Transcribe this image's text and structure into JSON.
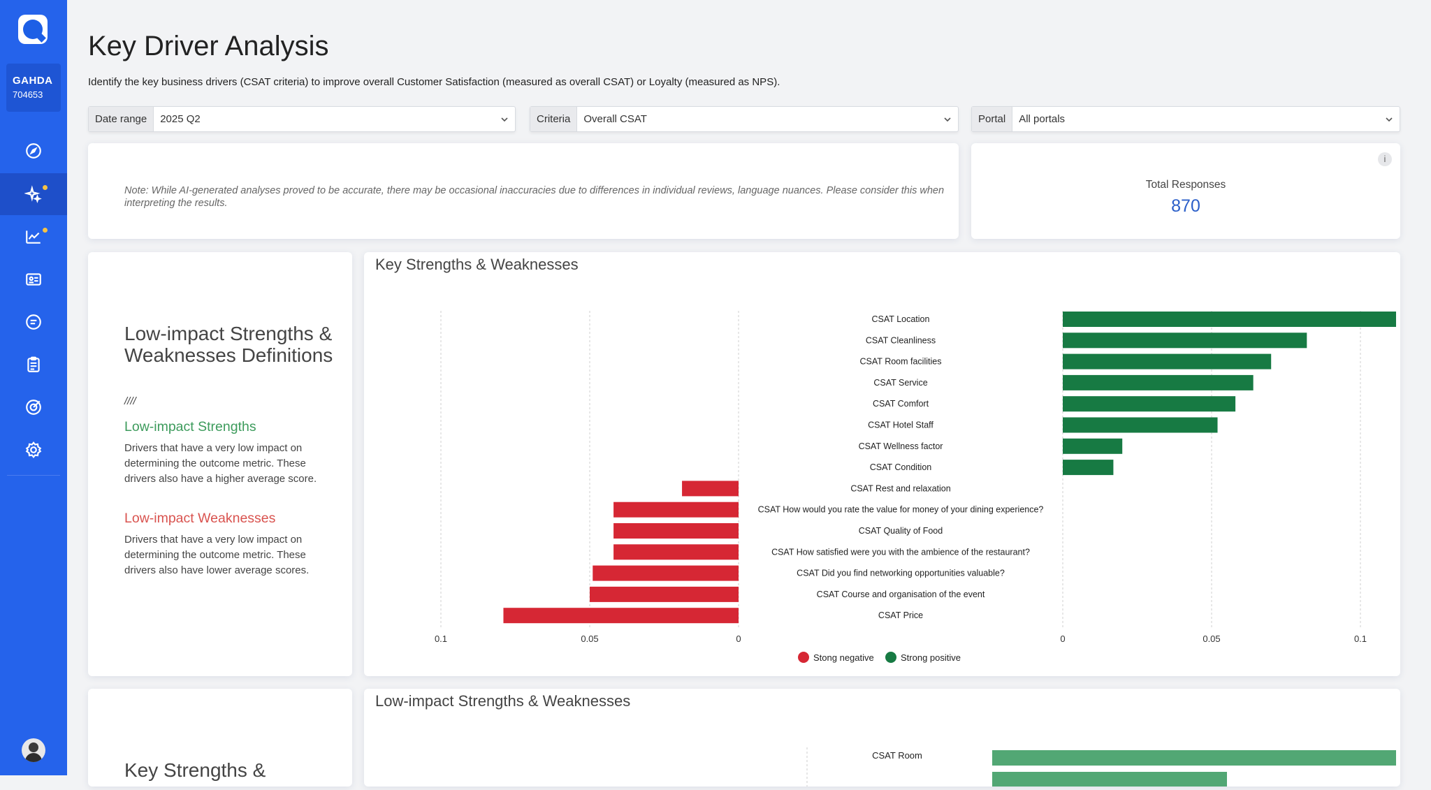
{
  "account": {
    "name": "GAHDA",
    "id": "704653"
  },
  "nav": {
    "items": [
      {
        "name": "explore",
        "icon": "compass-icon"
      },
      {
        "name": "ai-insights",
        "icon": "sparkles-icon",
        "active": true,
        "badge": true
      },
      {
        "name": "analytics",
        "icon": "chart-line-icon",
        "badge": true
      },
      {
        "name": "profiles",
        "icon": "id-card-icon"
      },
      {
        "name": "messages",
        "icon": "chat-bubble-icon"
      },
      {
        "name": "surveys",
        "icon": "clipboard-icon"
      },
      {
        "name": "goals",
        "icon": "target-icon"
      },
      {
        "name": "settings",
        "icon": "gear-icon"
      }
    ]
  },
  "page": {
    "title": "Key Driver Analysis",
    "subtitle": "Identify the key business drivers (CSAT criteria) to improve overall Customer Satisfaction (measured as overall CSAT) or Loyalty (measured as NPS)."
  },
  "filters": {
    "date_range": {
      "label": "Date range",
      "value": "2025 Q2"
    },
    "criteria": {
      "label": "Criteria",
      "value": "Overall CSAT"
    },
    "portal": {
      "label": "Portal",
      "value": "All portals"
    }
  },
  "note": "Note: While AI-generated analyses proved to be accurate, there may be occasional inaccuracies due to differences in individual reviews, language nuances. Please consider this when interpreting the results.",
  "total": {
    "label": "Total Responses",
    "value": "870",
    "info": "i"
  },
  "definitions": {
    "title": "Low-impact Strengths & Weaknesses Definitions",
    "separator": "////",
    "strengths_title": "Low-impact Strengths",
    "strengths_desc": "Drivers that have a very low impact on determining the outcome metric. These drivers also have a higher average score.",
    "weaknesses_title": "Low-impact Weaknesses",
    "weaknesses_desc": "Drivers that have a very low impact on determining the outcome metric. These drivers also have lower average scores.",
    "strength_color": "#3d9b5c",
    "weakness_color": "#d9534f"
  },
  "chart_data": {
    "type": "bar",
    "title": "Key Strengths & Weaknesses",
    "orientation": "diverging-horizontal",
    "categories": [
      "CSAT Location",
      "CSAT Cleanliness",
      "CSAT Room facilities",
      "CSAT Service",
      "CSAT Comfort",
      "CSAT Hotel Staff",
      "CSAT Wellness factor",
      "CSAT Condition",
      "CSAT Rest and relaxation",
      "CSAT How would you rate the value for money of your dining experience?",
      "CSAT Quality of Food",
      "CSAT How satisfied were you with the ambience of the restaurant?",
      "CSAT Did you find networking opportunities valuable?",
      "CSAT Course and organisation of the event",
      "CSAT Price"
    ],
    "series": [
      {
        "name": "Stong negative",
        "color": "#d62734",
        "values": [
          0,
          0,
          0,
          0,
          0,
          0,
          0,
          0,
          0.019,
          0.042,
          0.042,
          0.042,
          0.049,
          0.05,
          0.079
        ]
      },
      {
        "name": "Strong positive",
        "color": "#177a43",
        "values": [
          0.112,
          0.082,
          0.07,
          0.064,
          0.058,
          0.052,
          0.02,
          0.017,
          0,
          0,
          0,
          0,
          0,
          0,
          0
        ]
      }
    ],
    "xlim_negative": [
      0.1,
      0
    ],
    "xlim_positive": [
      0,
      0.1
    ],
    "ticks_negative": [
      "0.1",
      "0.05",
      "0"
    ],
    "ticks_positive": [
      "0",
      "0.05",
      "0.1"
    ],
    "grid": true,
    "legend": "bottom"
  },
  "section2": {
    "definitions_title": "Key Strengths &",
    "chart_title": "Low-impact Strengths & Weaknesses",
    "first_category": "CSAT Room"
  }
}
